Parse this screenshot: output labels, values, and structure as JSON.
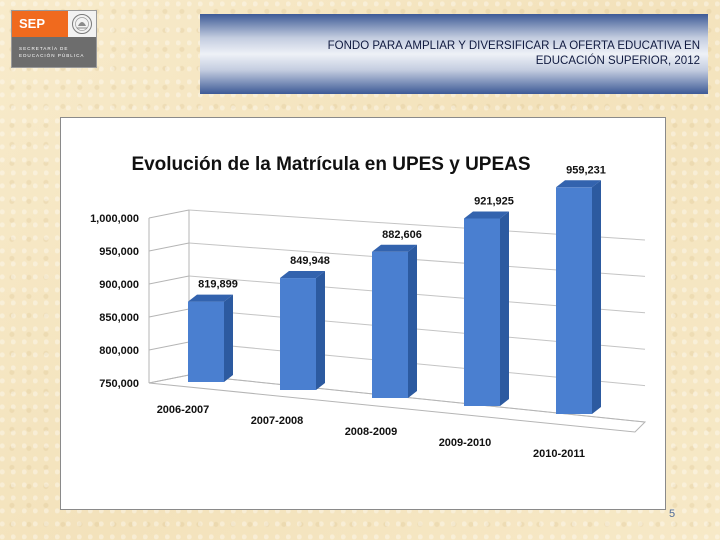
{
  "logo": {
    "brand": "SEP",
    "line1": "SECRETARÍA DE",
    "line2": "EDUCACIÓN PÚBLICA",
    "seal_icon": "mexico-seal-icon"
  },
  "header": {
    "line1": "FONDO PARA AMPLIAR Y DIVERSIFICAR LA OFERTA EDUCATIVA EN",
    "line2": "EDUCACIÓN SUPERIOR, 2012"
  },
  "page_number": "5",
  "colors": {
    "bar_front": "#4a7fd0",
    "bar_side": "#2c5aa0",
    "bar_top": "#3363ae"
  },
  "chart_data": {
    "type": "bar",
    "title": "Evolución de la Matrícula en UPES y UPEAS",
    "xlabel": "",
    "ylabel": "",
    "categories": [
      "2006-2007",
      "2007-2008",
      "2008-2009",
      "2009-2010",
      "2010-2011"
    ],
    "values": [
      819899,
      849948,
      882606,
      921925,
      959231
    ],
    "value_labels": [
      "819,899",
      "849,948",
      "882,606",
      "921,925",
      "959,231"
    ],
    "ylim": [
      750000,
      1000000
    ],
    "yticks": [
      750000,
      800000,
      850000,
      900000,
      950000,
      1000000
    ],
    "ytick_labels": [
      "750,000",
      "800,000",
      "850,000",
      "900,000",
      "950,000",
      "1,000,000"
    ],
    "grid": true,
    "legend": "none",
    "style": "3d-columns"
  }
}
